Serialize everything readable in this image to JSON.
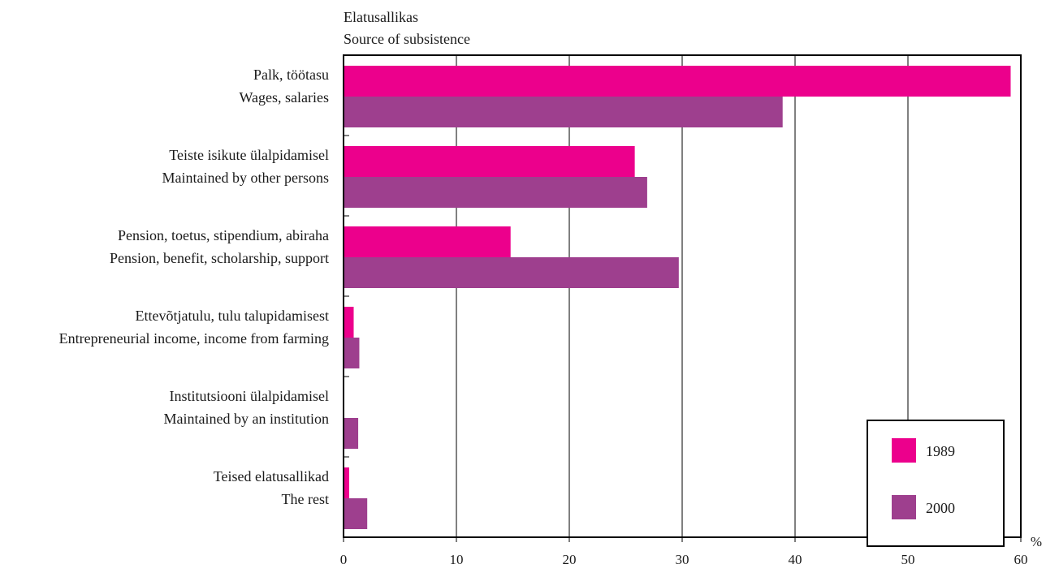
{
  "chart_data": {
    "type": "bar",
    "orientation": "horizontal",
    "category_title_lines": [
      "Elatusallikas",
      "Source of subsistence"
    ],
    "unit_label": "%",
    "categories": [
      [
        "Palk, töötasu",
        "Wages, salaries"
      ],
      [
        "Teiste isikute ülalpidamisel",
        "Maintained by other persons"
      ],
      [
        "Pension, toetus, stipendium, abiraha",
        "Pension, benefit, scholarship, support"
      ],
      [
        "Ettevõtjatulu, tulu talupidamisest",
        "Entrepreneurial income, income from farming"
      ],
      [
        "Institutsiooni ülalpidamisel",
        "Maintained by an institution"
      ],
      [
        "Teised elatusallikad",
        "The rest"
      ]
    ],
    "series": [
      {
        "name": "1989",
        "color": "#ec008c",
        "values": [
          59.1,
          25.8,
          14.8,
          0.9,
          0.0,
          0.5
        ]
      },
      {
        "name": "2000",
        "color": "#9e3f8e",
        "values": [
          38.9,
          26.9,
          29.7,
          1.4,
          1.3,
          2.1
        ]
      }
    ],
    "xlim": [
      0,
      60
    ],
    "xticks": [
      0,
      10,
      20,
      30,
      40,
      50,
      60
    ],
    "grid": true,
    "legend_position": "bottom-right"
  }
}
